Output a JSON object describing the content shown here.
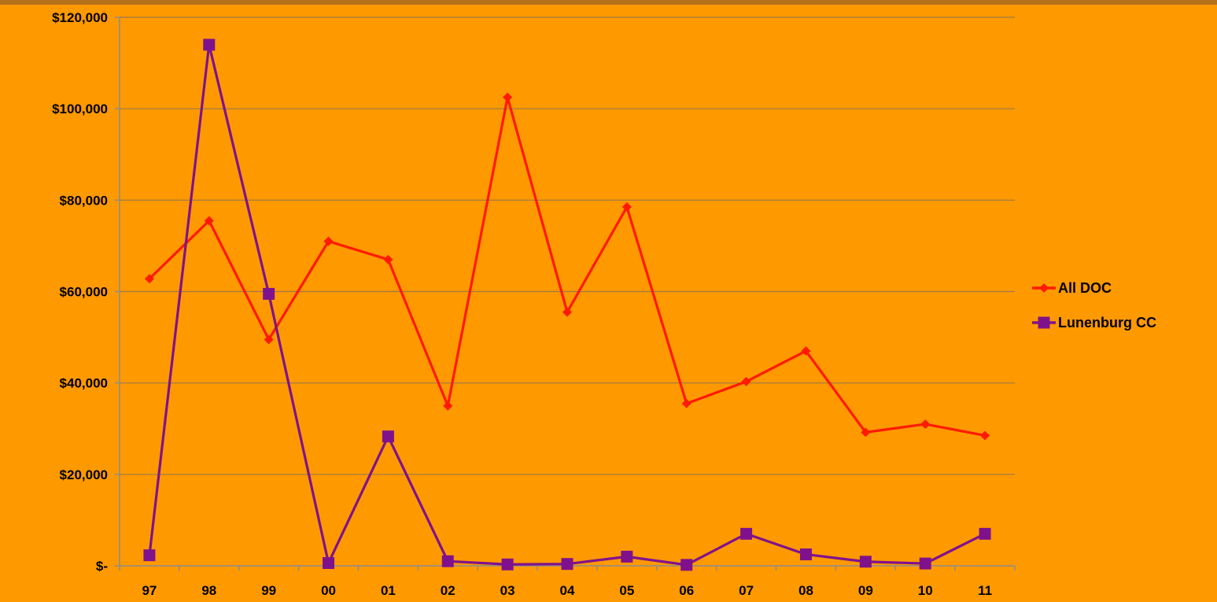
{
  "chart_data": {
    "type": "line",
    "title": "",
    "xlabel": "",
    "ylabel": "",
    "categories": [
      "97",
      "98",
      "99",
      "00",
      "01",
      "02",
      "03",
      "04",
      "05",
      "06",
      "07",
      "08",
      "09",
      "10",
      "11"
    ],
    "yticks": [
      "$-",
      "$20,000",
      "$40,000",
      "$60,000",
      "$80,000",
      "$100,000",
      "$120,000"
    ],
    "ylim": [
      0,
      120000
    ],
    "grid": true,
    "legend_position": "right",
    "series": [
      {
        "name": "All DOC",
        "color": "#FF1A00",
        "marker": "diamond",
        "values": [
          62800,
          75500,
          49500,
          71000,
          67000,
          35000,
          102500,
          55500,
          78500,
          35500,
          40300,
          47000,
          29200,
          31000,
          28500
        ]
      },
      {
        "name": "Lunenburg CC",
        "color": "#7F128C",
        "marker": "square",
        "values": [
          2300,
          114000,
          59500,
          600,
          28300,
          1000,
          300,
          400,
          2000,
          200,
          7000,
          2500,
          900,
          500,
          7000
        ]
      }
    ]
  }
}
